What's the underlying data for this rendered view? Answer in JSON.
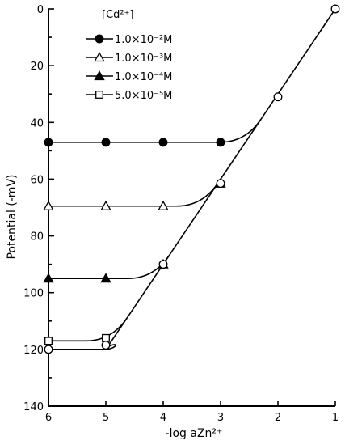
{
  "chart_data": {
    "type": "line",
    "ylabel": "Potential (-mV)",
    "xlabel": "-log aZn²⁺",
    "x_ticks": [
      "6",
      "5",
      "4",
      "3",
      "2",
      "1"
    ],
    "y_ticks": [
      "0",
      "20",
      "40",
      "60",
      "80",
      "100",
      "120",
      "140"
    ],
    "xlim": [
      6,
      1
    ],
    "ylim": [
      0,
      140
    ],
    "legend_title": "[Cd²⁺]",
    "legend_position": "top-left",
    "series": [
      {
        "name": "1.0×10⁻²M",
        "marker": "filled-circle",
        "x": [
          6,
          5,
          4,
          3
        ],
        "y": [
          47,
          47,
          47,
          47
        ],
        "plateau": 47
      },
      {
        "name": "1.0×10⁻³M",
        "marker": "open-triangle",
        "x": [
          6,
          5,
          4,
          3
        ],
        "y": [
          69.5,
          69.5,
          69.5,
          61.5
        ],
        "plateau": 69.5
      },
      {
        "name": "1.0×10⁻⁴M",
        "marker": "filled-triangle",
        "x": [
          6,
          5,
          4
        ],
        "y": [
          95,
          95,
          90
        ],
        "plateau": 95
      },
      {
        "name": "5.0×10⁻⁵M",
        "marker": "open-square",
        "x": [
          6,
          5
        ],
        "y": [
          117,
          116
        ],
        "plateau": 117
      }
    ],
    "nernstian_line": {
      "marker": "open-circle",
      "x": [
        6,
        5,
        4,
        3,
        2,
        1
      ],
      "y": [
        120,
        118.5,
        90,
        61.5,
        31,
        0
      ]
    }
  }
}
